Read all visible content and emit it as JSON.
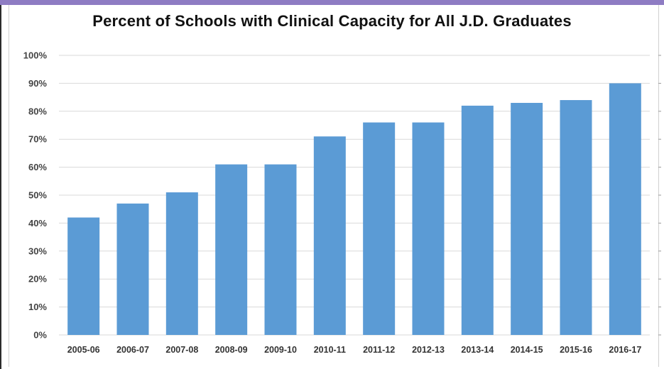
{
  "colors": {
    "bar": "#5b9bd5",
    "grid": "#d9d9d9",
    "top_band": "#8e7cc3"
  },
  "chart_data": {
    "type": "bar",
    "title": "Percent of Schools with Clinical Capacity for All J.D. Graduates",
    "xlabel": "",
    "ylabel": "",
    "categories": [
      "2005-06",
      "2006-07",
      "2007-08",
      "2008-09",
      "2009-10",
      "2010-11",
      "2011-12",
      "2012-13",
      "2013-14",
      "2014-15",
      "2015-16",
      "2016-17"
    ],
    "values": [
      42,
      47,
      51,
      61,
      61,
      71,
      76,
      76,
      82,
      83,
      84,
      90
    ],
    "ylim": [
      0,
      100
    ],
    "yticks": [
      0,
      10,
      20,
      30,
      40,
      50,
      60,
      70,
      80,
      90,
      100
    ],
    "ytick_labels": [
      "0%",
      "10%",
      "20%",
      "30%",
      "40%",
      "50%",
      "60%",
      "70%",
      "80%",
      "90%",
      "100%"
    ],
    "grid": true,
    "legend": "none"
  }
}
